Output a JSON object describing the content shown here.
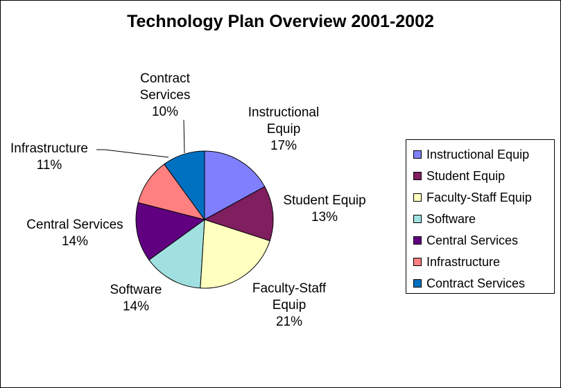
{
  "chart_data": {
    "type": "pie",
    "title": "Technology Plan Overview 2001-2002",
    "categories": [
      "Instructional Equip",
      "Student Equip",
      "Faculty-Staff Equip",
      "Software",
      "Central Services",
      "Infrastructure",
      "Contract Services"
    ],
    "values": [
      17,
      13,
      21,
      14,
      14,
      11,
      10
    ],
    "value_labels": [
      "17%",
      "13%",
      "21%",
      "14%",
      "14%",
      "11%",
      "10%"
    ],
    "slice_labels": [
      {
        "lines": [
          "Instructional",
          "Equip"
        ],
        "pct": "17%"
      },
      {
        "lines": [
          "Student Equip"
        ],
        "pct": "13%"
      },
      {
        "lines": [
          "Faculty-Staff",
          "Equip"
        ],
        "pct": "21%"
      },
      {
        "lines": [
          "Software"
        ],
        "pct": "14%"
      },
      {
        "lines": [
          "Central Services"
        ],
        "pct": "14%"
      },
      {
        "lines": [
          "Infrastructure"
        ],
        "pct": "11%"
      },
      {
        "lines": [
          "Contract",
          "Services"
        ],
        "pct": "10%"
      }
    ],
    "colors": [
      "#8080ff",
      "#7f1f5f",
      "#ffffc0",
      "#a0e0e0",
      "#600080",
      "#ff8080",
      "#0070c0"
    ],
    "start_angle": "12 o'clock",
    "direction": "clockwise",
    "legend": {
      "position": "right"
    }
  }
}
